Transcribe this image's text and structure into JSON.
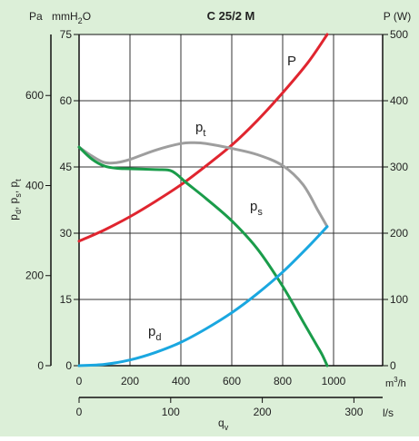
{
  "colors": {
    "background": "#dcefd8",
    "plot_background": "#ffffff",
    "grid": "#333333",
    "P": "#e0252f",
    "pt": "#9e9e9e",
    "ps": "#1a9c4a",
    "pd": "#1aa7e0"
  },
  "chart_data": {
    "type": "line",
    "title": "C 25/2 M",
    "grid": true,
    "axes": {
      "x_m3h": {
        "unit": "m³/h",
        "range": [
          0,
          1000
        ],
        "ticks": [
          0,
          200,
          400,
          600,
          800,
          1000
        ],
        "tick_labels": [
          "0",
          "200",
          "400",
          "600",
          "800",
          "1000"
        ]
      },
      "x_ls": {
        "unit": "l/s",
        "label": "qᵥ",
        "range": [
          0,
          277.78
        ],
        "ticks": [
          0,
          100,
          200,
          300
        ],
        "tick_labels": [
          "0",
          "100",
          "200",
          "300"
        ]
      },
      "y_pa": {
        "unit": "Pa",
        "label": "pd, ps, pt",
        "range": [
          0,
          735.5
        ],
        "ticks": [
          0,
          200,
          400,
          600
        ],
        "tick_labels": [
          "0",
          "200",
          "400",
          "600"
        ]
      },
      "y_mmh2o": {
        "unit": "mmH₂O",
        "range": [
          0,
          75
        ],
        "ticks": [
          0,
          15,
          30,
          45,
          60,
          75
        ],
        "tick_labels": [
          "0",
          "15",
          "30",
          "45",
          "60",
          "75"
        ]
      },
      "y_w": {
        "unit": "P (W)",
        "range": [
          0,
          500
        ],
        "ticks": [
          0,
          100,
          200,
          300,
          400,
          500
        ],
        "tick_labels": [
          "0",
          "100",
          "200",
          "300",
          "400",
          "500"
        ]
      }
    },
    "series": [
      {
        "name": "P",
        "axis": "y_w",
        "x": [
          0,
          100,
          200,
          300,
          400,
          500,
          600,
          700,
          800,
          900,
          975
        ],
        "values": [
          188,
          205,
          225,
          248,
          273,
          302,
          333,
          370,
          412,
          458,
          500
        ]
      },
      {
        "name": "pt",
        "axis": "y_mmh2o",
        "x": [
          0,
          50,
          100,
          150,
          200,
          300,
          400,
          450,
          500,
          600,
          700,
          800,
          880,
          940,
          975
        ],
        "values": [
          49.5,
          47.5,
          46,
          46,
          46.7,
          48.8,
          50.3,
          50.5,
          50.3,
          49.2,
          47.8,
          45.3,
          41,
          35,
          31.5
        ]
      },
      {
        "name": "ps",
        "axis": "y_mmh2o",
        "x": [
          0,
          50,
          100,
          150,
          200,
          300,
          350,
          380,
          420,
          500,
          600,
          700,
          800,
          880,
          930,
          955,
          975
        ],
        "values": [
          49.5,
          46.8,
          45.2,
          44.7,
          44.6,
          44.4,
          44.3,
          43.5,
          41.5,
          37.8,
          32.8,
          26.5,
          18,
          10,
          5,
          2.5,
          0
        ]
      },
      {
        "name": "pd",
        "axis": "y_mmh2o",
        "x": [
          0,
          100,
          200,
          300,
          400,
          500,
          600,
          700,
          800,
          900,
          975
        ],
        "values": [
          0,
          0.3,
          1.3,
          3,
          5.3,
          8.4,
          12,
          16.3,
          21.2,
          26.9,
          31.5
        ]
      }
    ]
  },
  "labels": {
    "title": "C 25/2 M",
    "unit_pa": "Pa",
    "unit_mmh2o": "mmH",
    "unit_mmh2o_sub": "2",
    "unit_mmh2o_tail": "O",
    "unit_w": "P (W)",
    "unit_m3h_base": "m",
    "unit_m3h_sup": "3",
    "unit_m3h_tail": "/h",
    "unit_ls": "l/s",
    "qv_base": "q",
    "qv_sub": "v",
    "yaxis_pd": "p",
    "yaxis_pd_sub": "d",
    "yaxis_ps": ", p",
    "yaxis_ps_sub": "s",
    "yaxis_pt": ", p",
    "yaxis_pt_sub": "t",
    "series_P": "P",
    "series_pt_base": "p",
    "series_pt_sub": "t",
    "series_ps_base": "p",
    "series_ps_sub": "s",
    "series_pd_base": "p",
    "series_pd_sub": "d"
  }
}
